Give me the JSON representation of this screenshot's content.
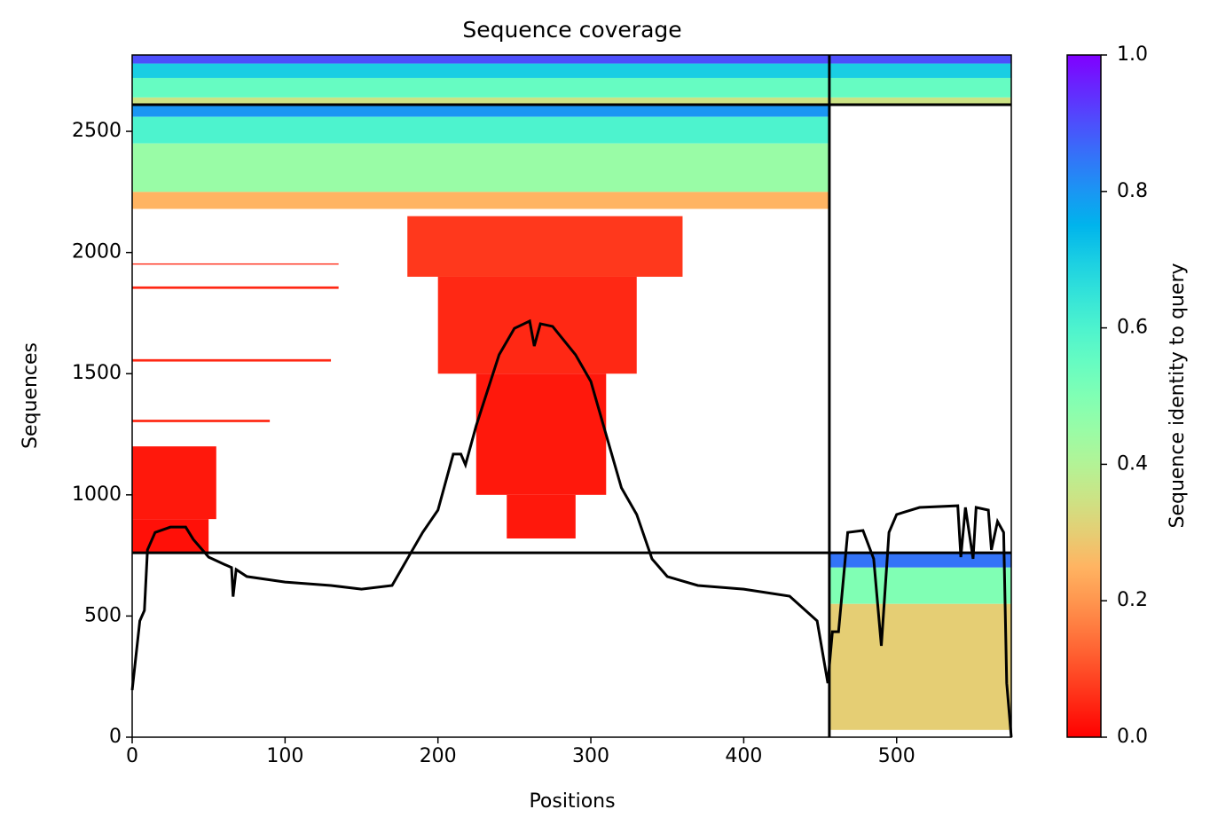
{
  "chart_data": {
    "type": "coverage",
    "title": "Sequence coverage",
    "xlabel": "Positions",
    "ylabel": "Sequences",
    "colorbar_label": "Sequence identity to query",
    "colormap": "rainbow_r",
    "xlim": [
      0,
      575
    ],
    "ylim": [
      0,
      2815
    ],
    "xticks": [
      0,
      100,
      200,
      300,
      400,
      500
    ],
    "yticks": [
      0,
      500,
      1000,
      1500,
      2000,
      2500
    ],
    "clim": [
      0,
      1
    ],
    "cticks": [
      {
        "value": 0,
        "label": "0.0"
      },
      {
        "value": 0.2,
        "label": "0.2"
      },
      {
        "value": 0.4,
        "label": "0.4"
      },
      {
        "value": 0.6,
        "label": "0.6"
      },
      {
        "value": 0.8,
        "label": "0.8"
      },
      {
        "value": 1,
        "label": "1.0"
      }
    ],
    "chain_x_boundaries": [
      456
    ],
    "chain_y_boundaries": [
      761,
      2610
    ],
    "blocks": [
      {
        "x": [
          0,
          575
        ],
        "y": [
          2610,
          2640
        ],
        "identity": 0.35
      },
      {
        "x": [
          0,
          575
        ],
        "y": [
          2640,
          2720
        ],
        "identity": 0.55
      },
      {
        "x": [
          0,
          575
        ],
        "y": [
          2720,
          2780
        ],
        "identity": 0.7
      },
      {
        "x": [
          0,
          575
        ],
        "y": [
          2780,
          2815
        ],
        "identity": 0.9
      },
      {
        "x": [
          0,
          456
        ],
        "y": [
          2560,
          2610
        ],
        "identity": 0.8
      },
      {
        "x": [
          0,
          456
        ],
        "y": [
          2450,
          2560
        ],
        "identity": 0.6
      },
      {
        "x": [
          0,
          456
        ],
        "y": [
          2250,
          2450
        ],
        "identity": 0.45
      },
      {
        "x": [
          0,
          456
        ],
        "y": [
          2180,
          2250
        ],
        "identity": 0.25
      },
      {
        "x": [
          180,
          360
        ],
        "y": [
          1900,
          2150
        ],
        "identity": 0.07
      },
      {
        "x": [
          200,
          330
        ],
        "y": [
          1500,
          1900
        ],
        "identity": 0.05
      },
      {
        "x": [
          225,
          310
        ],
        "y": [
          1000,
          1500
        ],
        "identity": 0.03
      },
      {
        "x": [
          245,
          290
        ],
        "y": [
          820,
          1000
        ],
        "identity": 0.03
      },
      {
        "x": [
          0,
          50
        ],
        "y": [
          761,
          900
        ],
        "identity": 0.02
      },
      {
        "x": [
          0,
          55
        ],
        "y": [
          900,
          1200
        ],
        "identity": 0.03
      },
      {
        "x": [
          0,
          90
        ],
        "y": [
          1300,
          1310
        ],
        "identity": 0.05
      },
      {
        "x": [
          0,
          130
        ],
        "y": [
          1550,
          1560
        ],
        "identity": 0.05
      },
      {
        "x": [
          0,
          135
        ],
        "y": [
          1850,
          1860
        ],
        "identity": 0.05
      },
      {
        "x": [
          0,
          135
        ],
        "y": [
          1950,
          1955
        ],
        "identity": 0.05
      },
      {
        "x": [
          456,
          575
        ],
        "y": [
          700,
          761
        ],
        "identity": 0.85
      },
      {
        "x": [
          456,
          575
        ],
        "y": [
          550,
          700
        ],
        "identity": 0.5
      },
      {
        "x": [
          456,
          575
        ],
        "y": [
          30,
          550
        ],
        "identity": 0.3
      }
    ],
    "coverage": {
      "x": [
        0,
        5,
        8,
        10,
        15,
        25,
        35,
        40,
        50,
        60,
        65,
        66,
        68,
        75,
        100,
        130,
        150,
        170,
        180,
        190,
        200,
        210,
        215,
        218,
        225,
        240,
        250,
        260,
        263,
        267,
        275,
        290,
        300,
        310,
        320,
        330,
        340,
        350,
        370,
        400,
        430,
        448,
        455,
        458,
        462,
        468,
        478,
        485,
        490,
        495,
        500,
        515,
        540,
        542,
        545,
        550,
        552,
        560,
        562,
        566,
        570,
        572,
        575
      ],
      "values": [
        194,
        480,
        523,
        773,
        845,
        867,
        867,
        816,
        743,
        714,
        700,
        580,
        692,
        663,
        640,
        626,
        611,
        626,
        736,
        845,
        937,
        1168,
        1168,
        1124,
        1285,
        1578,
        1687,
        1717,
        1614,
        1706,
        1695,
        1578,
        1468,
        1248,
        1029,
        919,
        736,
        663,
        626,
        611,
        582,
        480,
        223,
        435,
        435,
        845,
        853,
        736,
        377,
        845,
        919,
        948,
        955,
        743,
        948,
        736,
        948,
        937,
        773,
        890,
        845,
        223,
        0
      ]
    }
  }
}
